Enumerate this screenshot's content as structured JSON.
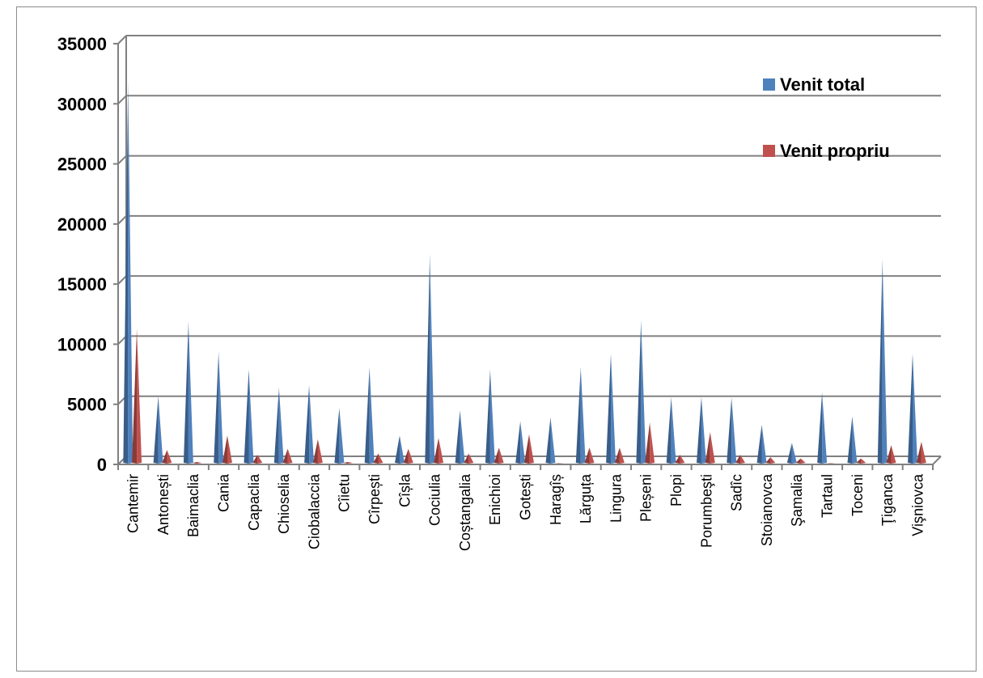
{
  "chart_data": {
    "type": "bar",
    "title": "",
    "xlabel": "",
    "ylabel": "",
    "ylim": [
      0,
      35000
    ],
    "yticks": [
      0,
      5000,
      10000,
      15000,
      20000,
      25000,
      30000,
      35000
    ],
    "grid": true,
    "legend_position": "top-right",
    "categories": [
      "Cantemir",
      "Antonești",
      "Baimaclia",
      "Cania",
      "Capaclia",
      "Chioselia",
      "Ciobalaccia",
      "Cîietu",
      "Cîrpești",
      "Cîșla",
      "Cociulia",
      "Coștangalia",
      "Enichioi",
      "Gotești",
      "Haragîș",
      "Lărguța",
      "Lingura",
      "Pleșeni",
      "Plopi",
      "Porumbeşti",
      "Sadîc",
      "Stoianovca",
      "Şamalia",
      "Tartaul",
      "Toceni",
      "Ţiganca",
      "Vişniovca"
    ],
    "series": [
      {
        "name": "Venit total",
        "color": "#4f81bd",
        "values": [
          31800,
          5700,
          11900,
          9400,
          7900,
          6400,
          6600,
          4700,
          8100,
          2400,
          17500,
          4500,
          7900,
          3600,
          3900,
          8100,
          9200,
          12000,
          5600,
          5600,
          5600,
          3300,
          1800,
          6000,
          4000,
          17100,
          9200
        ]
      },
      {
        "name": "Venit propriu",
        "color": "#c0504d",
        "values": [
          11300,
          1200,
          200,
          2400,
          800,
          1300,
          2100,
          200,
          900,
          1300,
          2200,
          900,
          1400,
          2500,
          100,
          1400,
          1400,
          3500,
          800,
          2700,
          800,
          600,
          500,
          100,
          500,
          1600,
          1900
        ]
      }
    ]
  }
}
